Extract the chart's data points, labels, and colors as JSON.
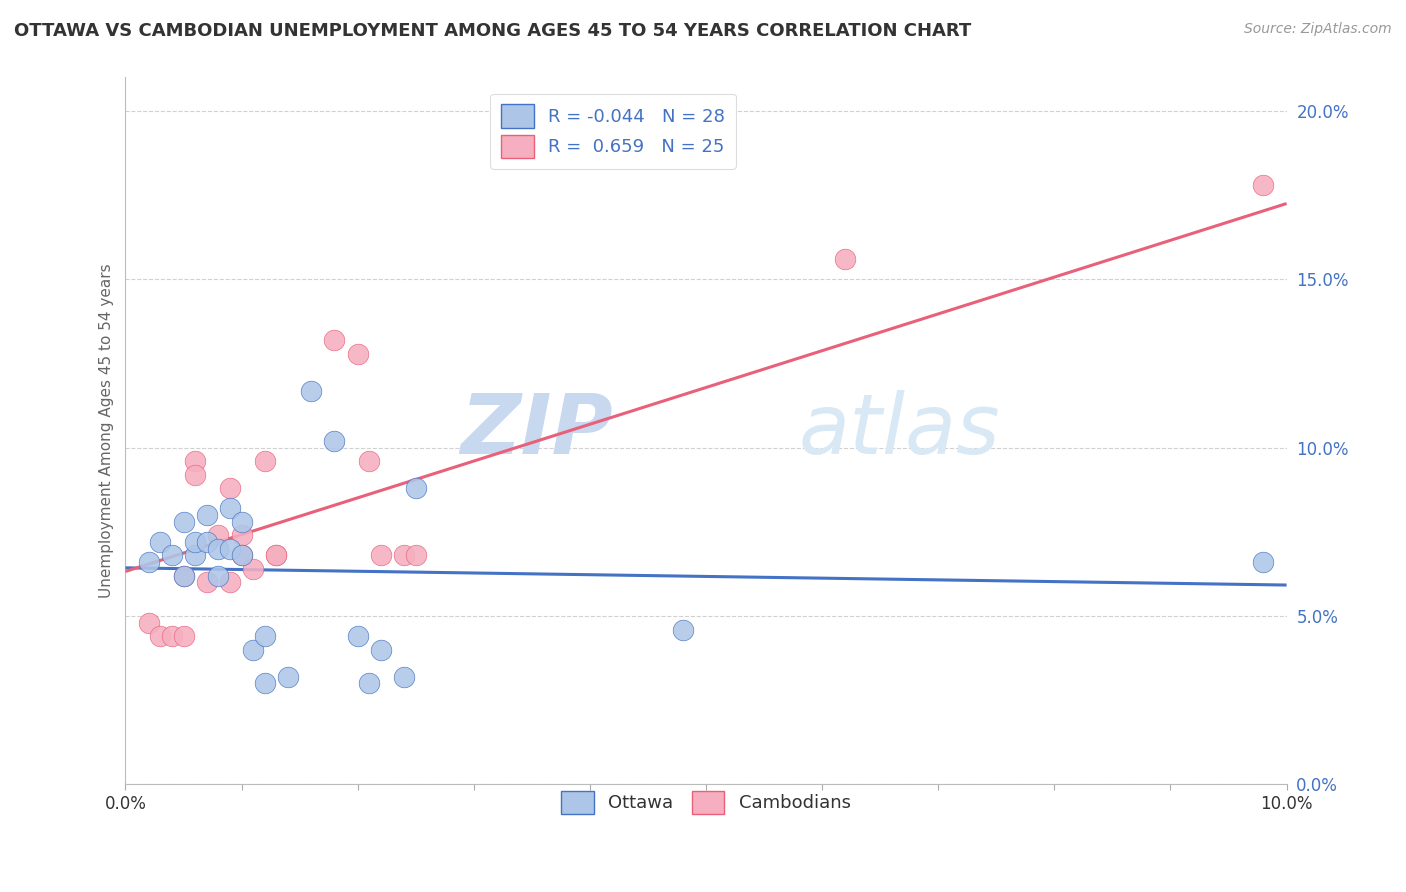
{
  "title": "OTTAWA VS CAMBODIAN UNEMPLOYMENT AMONG AGES 45 TO 54 YEARS CORRELATION CHART",
  "source_text": "Source: ZipAtlas.com",
  "ylabel": "Unemployment Among Ages 45 to 54 years",
  "xlim": [
    0.0,
    0.1
  ],
  "ylim": [
    0.0,
    0.21
  ],
  "ottawa_R": -0.044,
  "ottawa_N": 28,
  "cambodian_R": 0.659,
  "cambodian_N": 25,
  "ottawa_color": "#adc6e8",
  "cambodian_color": "#f5afc0",
  "ottawa_line_color": "#4472c4",
  "cambodian_line_color": "#e8607a",
  "legend_label_1": "Ottawa",
  "legend_label_2": "Cambodians",
  "watermark_1": "ZIP",
  "watermark_2": "atlas",
  "ottawa_x": [
    0.002,
    0.003,
    0.004,
    0.005,
    0.005,
    0.006,
    0.006,
    0.007,
    0.007,
    0.008,
    0.008,
    0.009,
    0.009,
    0.01,
    0.01,
    0.011,
    0.012,
    0.012,
    0.014,
    0.016,
    0.018,
    0.02,
    0.021,
    0.022,
    0.024,
    0.025,
    0.048,
    0.098
  ],
  "ottawa_y": [
    0.066,
    0.072,
    0.068,
    0.062,
    0.078,
    0.068,
    0.072,
    0.072,
    0.08,
    0.062,
    0.07,
    0.07,
    0.082,
    0.078,
    0.068,
    0.04,
    0.03,
    0.044,
    0.032,
    0.117,
    0.102,
    0.044,
    0.03,
    0.04,
    0.032,
    0.088,
    0.046,
    0.066
  ],
  "cambodian_x": [
    0.002,
    0.003,
    0.004,
    0.005,
    0.005,
    0.006,
    0.006,
    0.007,
    0.008,
    0.009,
    0.009,
    0.01,
    0.01,
    0.011,
    0.012,
    0.013,
    0.013,
    0.018,
    0.02,
    0.021,
    0.022,
    0.024,
    0.025,
    0.062,
    0.098
  ],
  "cambodian_y": [
    0.048,
    0.044,
    0.044,
    0.044,
    0.062,
    0.096,
    0.092,
    0.06,
    0.074,
    0.06,
    0.088,
    0.074,
    0.068,
    0.064,
    0.096,
    0.068,
    0.068,
    0.132,
    0.128,
    0.096,
    0.068,
    0.068,
    0.068,
    0.156,
    0.178
  ],
  "ottawa_line_x": [
    0.0,
    0.1
  ],
  "cambodian_line_x": [
    0.0,
    0.1
  ]
}
